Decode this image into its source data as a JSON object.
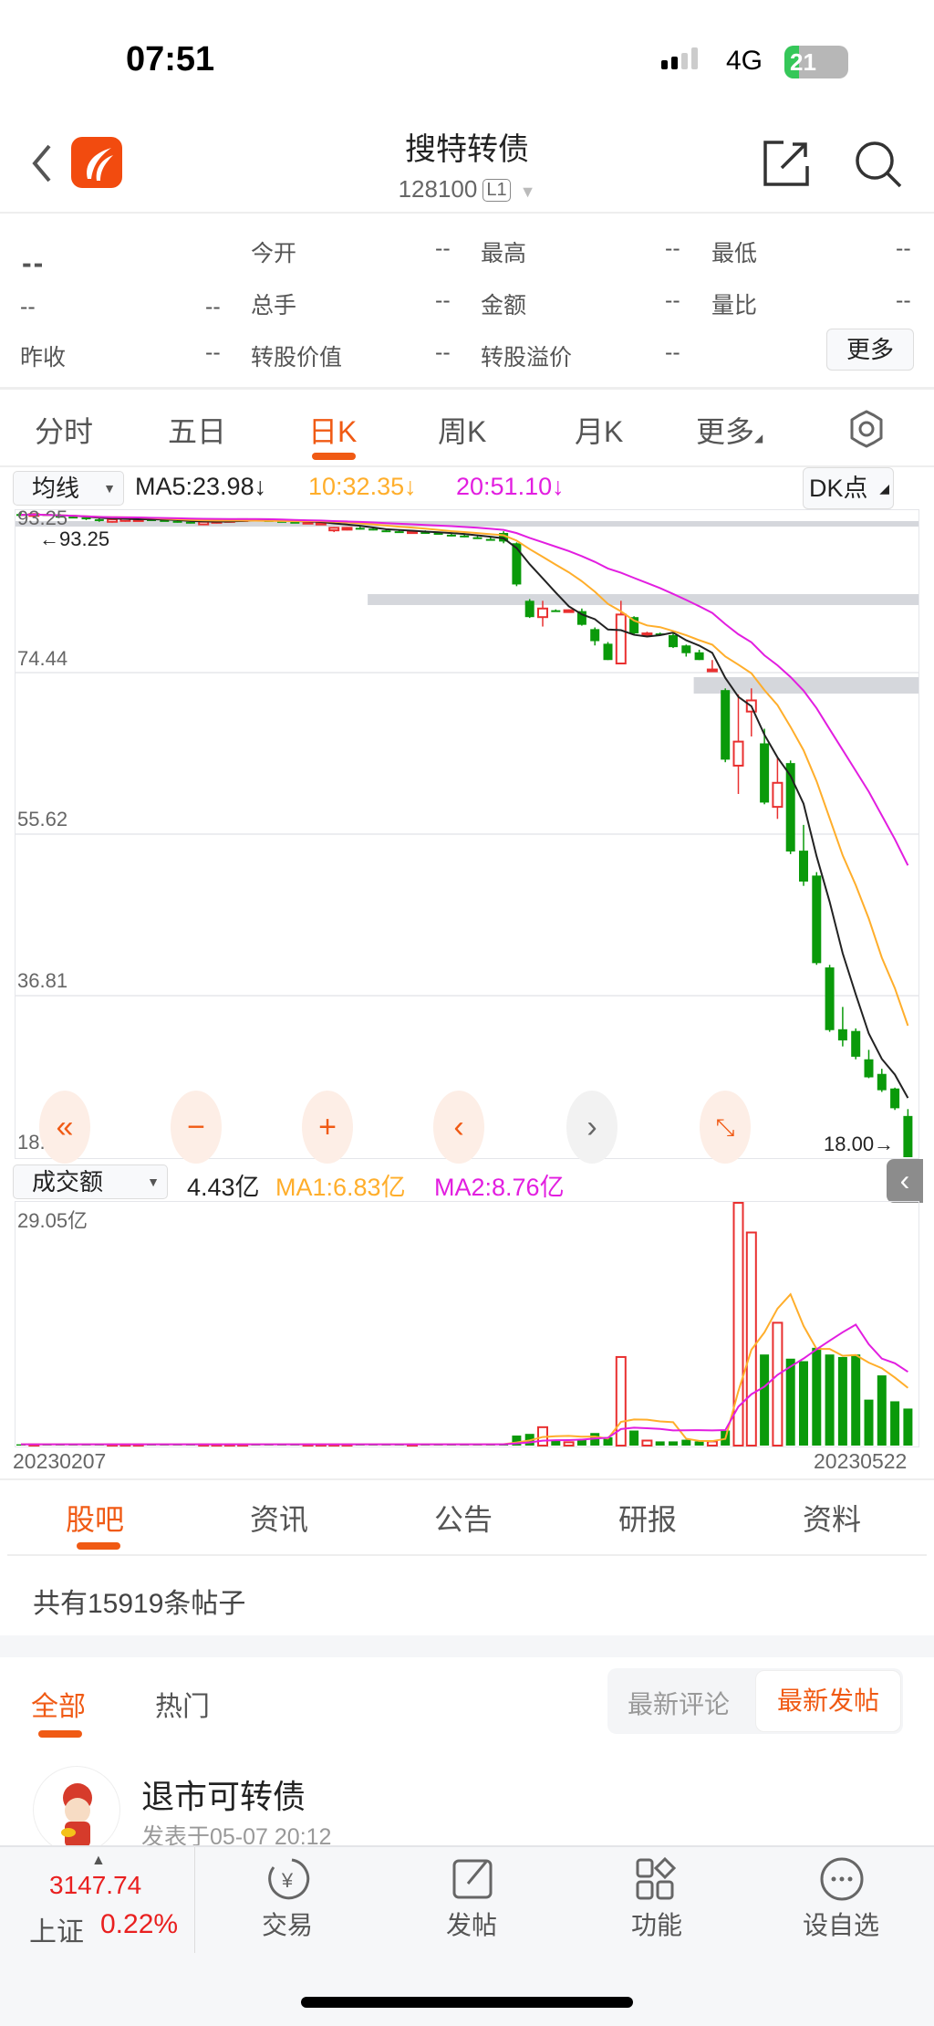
{
  "status_bar": {
    "time": "07:51",
    "network": "4G",
    "battery": "21"
  },
  "nav": {
    "title": "搜特转债",
    "code": "128100",
    "level_badge": "L1"
  },
  "quote": {
    "price": "--",
    "change": "--",
    "change_pct": "--",
    "fields": [
      {
        "label": "今开",
        "value": "--"
      },
      {
        "label": "最高",
        "value": "--"
      },
      {
        "label": "最低",
        "value": "--"
      },
      {
        "label": "总手",
        "value": "--"
      },
      {
        "label": "金额",
        "value": "--"
      },
      {
        "label": "量比",
        "value": "--"
      },
      {
        "label": "昨收",
        "value": "--"
      },
      {
        "label": "转股价值",
        "value": "--"
      },
      {
        "label": "转股溢价",
        "value": "--"
      }
    ],
    "more_label": "更多"
  },
  "kline_tabs": [
    "分时",
    "五日",
    "日K",
    "周K",
    "月K",
    "更多"
  ],
  "kline_active": "日K",
  "ma_bar": {
    "selector": "均线",
    "ma5": "MA5:23.98↓",
    "ma10": "10:32.35↓",
    "ma20": "20:51.10↓",
    "dk_label": "DK点"
  },
  "volume_bar": {
    "selector": "成交额",
    "value": "4.43亿",
    "ma1": "MA1:6.83亿",
    "ma2": "MA2:8.76亿",
    "max_label": "29.05亿"
  },
  "colors": {
    "accent": "#f05a14",
    "up": "#e93030",
    "down": "#0a9a0a",
    "ma5": "#222222",
    "ma10": "#ffae2b",
    "ma20": "#e21ee0"
  },
  "chart_data": [
    {
      "type": "candlestick",
      "y_ticks": [
        "93.25",
        "74.44",
        "55.62",
        "36.81",
        "18.00"
      ],
      "ylim": [
        18.0,
        93.25
      ],
      "max_marker": "←93.25",
      "min_marker": "18.00→",
      "x_start": "20230207",
      "x_end": "20230522",
      "ohlc": [
        [
          92.9,
          93.1,
          92.7,
          92.8
        ],
        [
          92.8,
          93.0,
          92.6,
          92.9
        ],
        [
          92.9,
          93.0,
          92.7,
          92.7
        ],
        [
          92.7,
          92.9,
          92.6,
          92.6
        ],
        [
          92.6,
          92.8,
          92.4,
          92.5
        ],
        [
          92.5,
          92.6,
          92.2,
          92.3
        ],
        [
          92.3,
          92.4,
          92.0,
          92.2
        ],
        [
          92.0,
          92.3,
          91.9,
          92.3
        ],
        [
          92.1,
          92.4,
          92.0,
          92.4
        ],
        [
          92.2,
          92.4,
          92.1,
          92.3
        ],
        [
          92.3,
          92.4,
          92.2,
          92.2
        ],
        [
          92.2,
          92.3,
          92.1,
          92.1
        ],
        [
          92.1,
          92.3,
          91.9,
          92.0
        ],
        [
          92.0,
          92.1,
          91.8,
          91.9
        ],
        [
          91.7,
          92.0,
          91.6,
          92.0
        ],
        [
          91.9,
          92.1,
          91.8,
          92.1
        ],
        [
          92.0,
          92.2,
          92.0,
          92.2
        ],
        [
          92.3,
          92.4,
          92.2,
          92.3
        ],
        [
          92.3,
          92.4,
          92.2,
          92.2
        ],
        [
          92.2,
          92.3,
          92.1,
          92.1
        ],
        [
          92.1,
          92.2,
          92.0,
          92.0
        ],
        [
          92.0,
          92.1,
          91.9,
          91.9
        ],
        [
          92.0,
          92.1,
          91.9,
          92.0
        ],
        [
          91.8,
          92.0,
          91.7,
          91.9
        ],
        [
          91.0,
          91.4,
          90.8,
          91.3
        ],
        [
          91.1,
          91.4,
          91.0,
          91.3
        ],
        [
          91.3,
          91.5,
          91.1,
          91.2
        ],
        [
          91.2,
          91.3,
          91.0,
          91.0
        ],
        [
          91.0,
          91.1,
          90.8,
          90.9
        ],
        [
          90.9,
          91.0,
          90.7,
          90.8
        ],
        [
          90.7,
          91.0,
          90.6,
          90.9
        ],
        [
          90.8,
          91.0,
          90.6,
          90.7
        ],
        [
          90.7,
          90.8,
          90.5,
          90.6
        ],
        [
          90.5,
          90.7,
          90.3,
          90.4
        ],
        [
          90.4,
          90.5,
          90.2,
          90.3
        ],
        [
          90.2,
          90.4,
          90.0,
          90.1
        ],
        [
          90.0,
          90.2,
          89.8,
          89.9
        ],
        [
          90.7,
          90.9,
          89.5,
          89.7
        ],
        [
          89.5,
          89.6,
          84.5,
          84.7
        ],
        [
          82.8,
          83.0,
          80.8,
          80.9
        ],
        [
          80.9,
          82.8,
          79.8,
          81.9
        ],
        [
          81.7,
          81.8,
          81.6,
          81.6
        ],
        [
          81.5,
          81.8,
          81.5,
          81.7
        ],
        [
          81.6,
          81.9,
          79.9,
          80.0
        ],
        [
          79.5,
          79.7,
          77.6,
          78.1
        ],
        [
          77.8,
          78.0,
          75.9,
          75.9
        ],
        [
          75.5,
          82.8,
          75.5,
          81.2
        ],
        [
          80.9,
          81.0,
          78.9,
          79.0
        ],
        [
          78.9,
          79.2,
          78.7,
          79.0
        ],
        [
          79.0,
          79.1,
          78.8,
          78.9
        ],
        [
          78.8,
          79.1,
          77.3,
          77.4
        ],
        [
          77.6,
          77.7,
          76.3,
          76.7
        ],
        [
          76.8,
          77.1,
          75.9,
          75.9
        ],
        [
          74.7,
          75.9,
          74.7,
          74.8
        ],
        [
          72.4,
          72.6,
          64.0,
          64.3
        ],
        [
          63.6,
          71.9,
          60.3,
          66.4
        ],
        [
          69.9,
          72.6,
          67.0,
          71.2
        ],
        [
          66.2,
          67.9,
          59.1,
          59.3
        ],
        [
          58.8,
          64.6,
          57.4,
          61.6
        ],
        [
          63.9,
          64.2,
          53.3,
          53.6
        ],
        [
          53.7,
          56.7,
          49.6,
          50.1
        ],
        [
          50.8,
          51.2,
          40.4,
          40.6
        ],
        [
          40.1,
          40.4,
          32.6,
          32.8
        ],
        [
          32.9,
          35.5,
          30.9,
          31.6
        ],
        [
          32.7,
          33.0,
          29.4,
          29.7
        ],
        [
          29.4,
          30.5,
          27.2,
          27.3
        ],
        [
          27.7,
          28.3,
          25.6,
          25.8
        ],
        [
          26.0,
          26.1,
          23.5,
          23.7
        ],
        [
          22.8,
          23.6,
          18.0,
          18.0
        ]
      ],
      "ma_periods": [
        5,
        10,
        20
      ]
    },
    {
      "type": "bar",
      "unit": "亿",
      "ylim": [
        0,
        29.05
      ],
      "values": [
        0.15,
        0.15,
        0.15,
        0.15,
        0.15,
        0.15,
        0.15,
        0.15,
        0.15,
        0.15,
        0.15,
        0.15,
        0.15,
        0.15,
        0.15,
        0.15,
        0.15,
        0.15,
        0.15,
        0.15,
        0.15,
        0.15,
        0.15,
        0.15,
        0.15,
        0.15,
        0.15,
        0.15,
        0.15,
        0.15,
        0.15,
        0.15,
        0.15,
        0.15,
        0.15,
        0.15,
        0.15,
        0.2,
        1.2,
        1.4,
        2.2,
        0.6,
        0.4,
        0.7,
        1.5,
        1.0,
        10.6,
        1.8,
        0.6,
        0.5,
        0.5,
        0.7,
        0.5,
        0.5,
        1.8,
        29.05,
        25.5,
        10.9,
        14.7,
        10.4,
        10.1,
        11.7,
        10.9,
        10.6,
        10.9,
        5.5,
        8.4,
        5.3,
        4.43
      ],
      "ma_periods": [
        5,
        10
      ]
    }
  ],
  "content_tabs": [
    "股吧",
    "资讯",
    "公告",
    "研报",
    "资料"
  ],
  "content_active": "股吧",
  "post_count": "共有15919条帖子",
  "filter_tabs": [
    "全部",
    "热门"
  ],
  "sort_options": [
    "最新评论",
    "最新发帖"
  ],
  "sort_active": "最新发帖",
  "posts": [
    {
      "title": "退市可转债",
      "meta": "发表于05-07 20:12"
    }
  ],
  "bottom_bar": {
    "index_value": "3147.74",
    "index_name": "上证",
    "index_change": "0.22%",
    "items": [
      {
        "label": "交易",
        "icon": "yuan-exchange-icon"
      },
      {
        "label": "发帖",
        "icon": "compose-icon"
      },
      {
        "label": "功能",
        "icon": "grid-icon"
      },
      {
        "label": "设自选",
        "icon": "more-circle-icon"
      }
    ]
  }
}
